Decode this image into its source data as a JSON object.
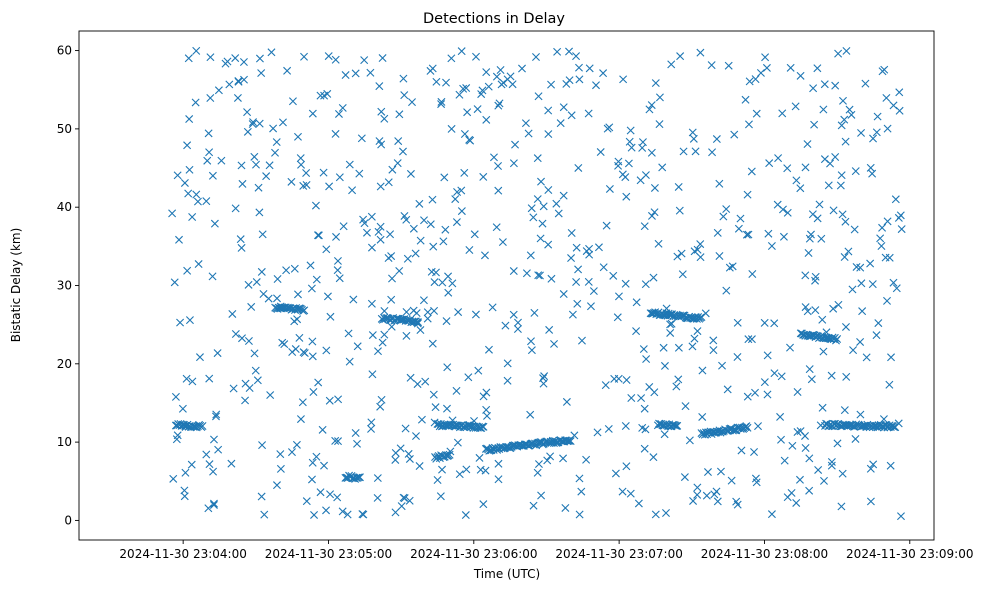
{
  "chart_data": {
    "type": "scatter",
    "title": "Detections in Delay",
    "xlabel": "Time (UTC)",
    "ylabel": "Bistatic Delay (km)",
    "marker": "x",
    "color": "#1f77b4",
    "grid": false,
    "xlim_seconds_from_start": [
      -43,
      310
    ],
    "ylim": [
      -2.5,
      62.5
    ],
    "x_ticks": [
      {
        "label": "2024-11-30 23:04:00",
        "t": 0
      },
      {
        "label": "2024-11-30 23:05:00",
        "t": 60
      },
      {
        "label": "2024-11-30 23:06:00",
        "t": 120
      },
      {
        "label": "2024-11-30 23:07:00",
        "t": 180
      },
      {
        "label": "2024-11-30 23:08:00",
        "t": 240
      },
      {
        "label": "2024-11-30 23:09:00",
        "t": 300
      }
    ],
    "y_ticks": [
      0,
      10,
      20,
      30,
      40,
      50,
      60
    ],
    "tracks": [
      {
        "note": "tracked target segment",
        "t": [
          -3,
          8
        ],
        "delay": [
          12.2,
          12.0
        ]
      },
      {
        "note": "tracked target segment",
        "t": [
          38,
          50
        ],
        "delay": [
          27.2,
          26.9
        ]
      },
      {
        "note": "tracked target segment",
        "t": [
          67,
          73
        ],
        "delay": [
          5.6,
          5.4
        ]
      },
      {
        "note": "tracked target segment",
        "t": [
          82,
          97
        ],
        "delay": [
          25.8,
          25.4
        ]
      },
      {
        "note": "tracked target segment",
        "t": [
          104,
          110
        ],
        "delay": [
          8.0,
          8.4
        ]
      },
      {
        "note": "tracked target segment",
        "t": [
          105,
          124
        ],
        "delay": [
          12.2,
          11.9
        ]
      },
      {
        "note": "tracked target segment",
        "t": [
          125,
          160
        ],
        "delay": [
          9.0,
          10.3
        ]
      },
      {
        "note": "tracked target segment",
        "t": [
          193,
          214
        ],
        "delay": [
          26.5,
          25.8
        ]
      },
      {
        "note": "tracked target segment",
        "t": [
          196,
          204
        ],
        "delay": [
          12.2,
          12.1
        ]
      },
      {
        "note": "tracked target segment",
        "t": [
          214,
          233
        ],
        "delay": [
          11.0,
          11.9
        ]
      },
      {
        "note": "tracked target segment",
        "t": [
          255,
          270
        ],
        "delay": [
          23.8,
          23.1
        ]
      },
      {
        "note": "tracked target segment",
        "t": [
          265,
          294
        ],
        "delay": [
          12.2,
          12.0
        ]
      }
    ],
    "clutter": {
      "count": 780,
      "t_range": [
        -5,
        297
      ],
      "delay_range": [
        0.5,
        60
      ]
    }
  }
}
